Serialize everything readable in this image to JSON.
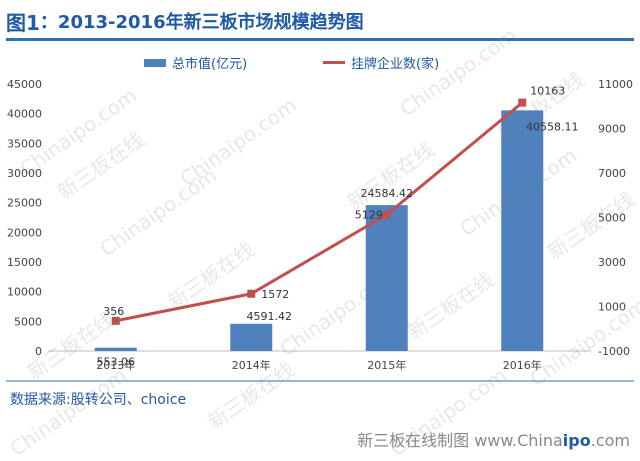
{
  "header": {
    "fig_label": "图1",
    "title": "：2013-2016年新三板市场规模趋势图"
  },
  "colors": {
    "bar": "#4f81bd",
    "line": "#c0504d",
    "title": "#1f5aa6"
  },
  "chart_data": {
    "type": "bar",
    "categories": [
      "2013年",
      "2014年",
      "2015年",
      "2016年"
    ],
    "series": [
      {
        "name": "总市值(亿元)",
        "type": "bar",
        "axis": "left",
        "values": [
          553.06,
          4591.42,
          24584.42,
          40558.11
        ],
        "labels": [
          "553.06",
          "4591.42",
          "24584.42",
          "40558.11"
        ]
      },
      {
        "name": "挂牌企业数(家)",
        "type": "line",
        "axis": "right",
        "values": [
          356,
          1572,
          5129,
          10163
        ],
        "labels": [
          "356",
          "1572",
          "5129",
          "10163"
        ]
      }
    ],
    "ylim_left": [
      0,
      45000
    ],
    "yticks_left": [
      "0",
      "5000",
      "10000",
      "15000",
      "20000",
      "25000",
      "30000",
      "35000",
      "40000",
      "45000"
    ],
    "ylim_right": [
      -1000,
      11000
    ],
    "yticks_right": [
      "-1000",
      "1000",
      "3000",
      "5000",
      "7000",
      "9000",
      "11000"
    ],
    "legend_position": "top"
  },
  "source_text": "数据来源:股转公司、choice",
  "watermark": [
    "新三板在线",
    "Chinaipo.com"
  ],
  "footer": {
    "prefix": "新三板在线制图 www.China",
    "bold": "ipo",
    "suffix": ".com"
  }
}
